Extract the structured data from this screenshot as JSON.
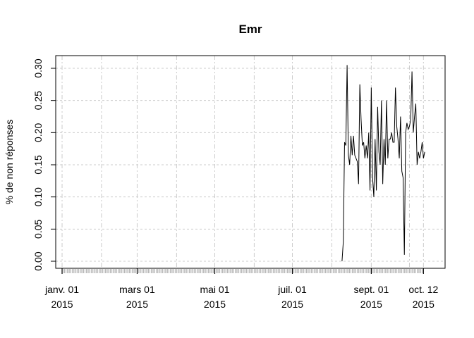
{
  "chart_data": {
    "type": "line",
    "title": "Emr",
    "ylabel": "% de non réponses",
    "xlabel": "",
    "ylim": [
      0,
      0.31
    ],
    "yticks": [
      0.0,
      0.05,
      0.1,
      0.15,
      0.2,
      0.25,
      0.3
    ],
    "ytick_labels": [
      "0.00",
      "0.05",
      "0.10",
      "0.15",
      "0.20",
      "0.25",
      "0.30"
    ],
    "xlim": [
      "2014-12-27",
      "2015-10-29"
    ],
    "xticks": [
      {
        "date": "2015-01-01",
        "label1": "janv. 01",
        "label2": "2015"
      },
      {
        "date": "2015-03-01",
        "label1": "mars 01",
        "label2": "2015"
      },
      {
        "date": "2015-05-01",
        "label1": "mai 01",
        "label2": "2015"
      },
      {
        "date": "2015-07-01",
        "label1": "juil. 01",
        "label2": "2015"
      },
      {
        "date": "2015-09-01",
        "label1": "sept. 01",
        "label2": "2015"
      },
      {
        "date": "2015-10-12",
        "label1": "oct. 12",
        "label2": "2015"
      }
    ],
    "grid": true,
    "line_color": "#000000",
    "grid_color": "#cccccc",
    "series": [
      {
        "x": [
          "2015-08-09",
          "2015-08-10",
          "2015-08-11",
          "2015-08-12",
          "2015-08-13",
          "2015-08-14",
          "2015-08-15",
          "2015-08-16",
          "2015-08-17",
          "2015-08-18",
          "2015-08-19",
          "2015-08-20",
          "2015-08-21",
          "2015-08-22",
          "2015-08-23",
          "2015-08-24",
          "2015-08-25",
          "2015-08-26",
          "2015-08-27",
          "2015-08-28",
          "2015-08-29",
          "2015-08-30",
          "2015-08-31",
          "2015-09-01",
          "2015-09-02",
          "2015-09-03",
          "2015-09-04",
          "2015-09-05",
          "2015-09-06",
          "2015-09-07",
          "2015-09-08",
          "2015-09-09",
          "2015-09-10",
          "2015-09-11",
          "2015-09-12",
          "2015-09-13",
          "2015-09-14",
          "2015-09-15",
          "2015-09-16",
          "2015-09-17",
          "2015-09-18",
          "2015-09-19",
          "2015-09-20",
          "2015-09-21",
          "2015-09-22",
          "2015-09-23",
          "2015-09-24",
          "2015-09-25",
          "2015-09-26",
          "2015-09-27",
          "2015-09-28",
          "2015-09-29",
          "2015-09-30",
          "2015-10-01",
          "2015-10-02",
          "2015-10-03",
          "2015-10-04",
          "2015-10-05",
          "2015-10-06",
          "2015-10-07",
          "2015-10-08",
          "2015-10-09",
          "2015-10-10",
          "2015-10-11",
          "2015-10-12",
          "2015-10-13"
        ],
        "values": [
          0.0,
          0.03,
          0.185,
          0.18,
          0.305,
          0.165,
          0.15,
          0.195,
          0.165,
          0.195,
          0.165,
          0.16,
          0.155,
          0.12,
          0.275,
          0.22,
          0.18,
          0.185,
          0.16,
          0.18,
          0.16,
          0.2,
          0.11,
          0.27,
          0.13,
          0.1,
          0.19,
          0.11,
          0.24,
          0.17,
          0.15,
          0.25,
          0.12,
          0.19,
          0.15,
          0.25,
          0.16,
          0.19,
          0.19,
          0.2,
          0.185,
          0.185,
          0.27,
          0.21,
          0.19,
          0.16,
          0.225,
          0.14,
          0.13,
          0.01,
          0.2,
          0.215,
          0.205,
          0.21,
          0.22,
          0.295,
          0.2,
          0.225,
          0.245,
          0.15,
          0.17,
          0.16,
          0.17,
          0.185,
          0.16,
          0.17
        ]
      }
    ]
  }
}
